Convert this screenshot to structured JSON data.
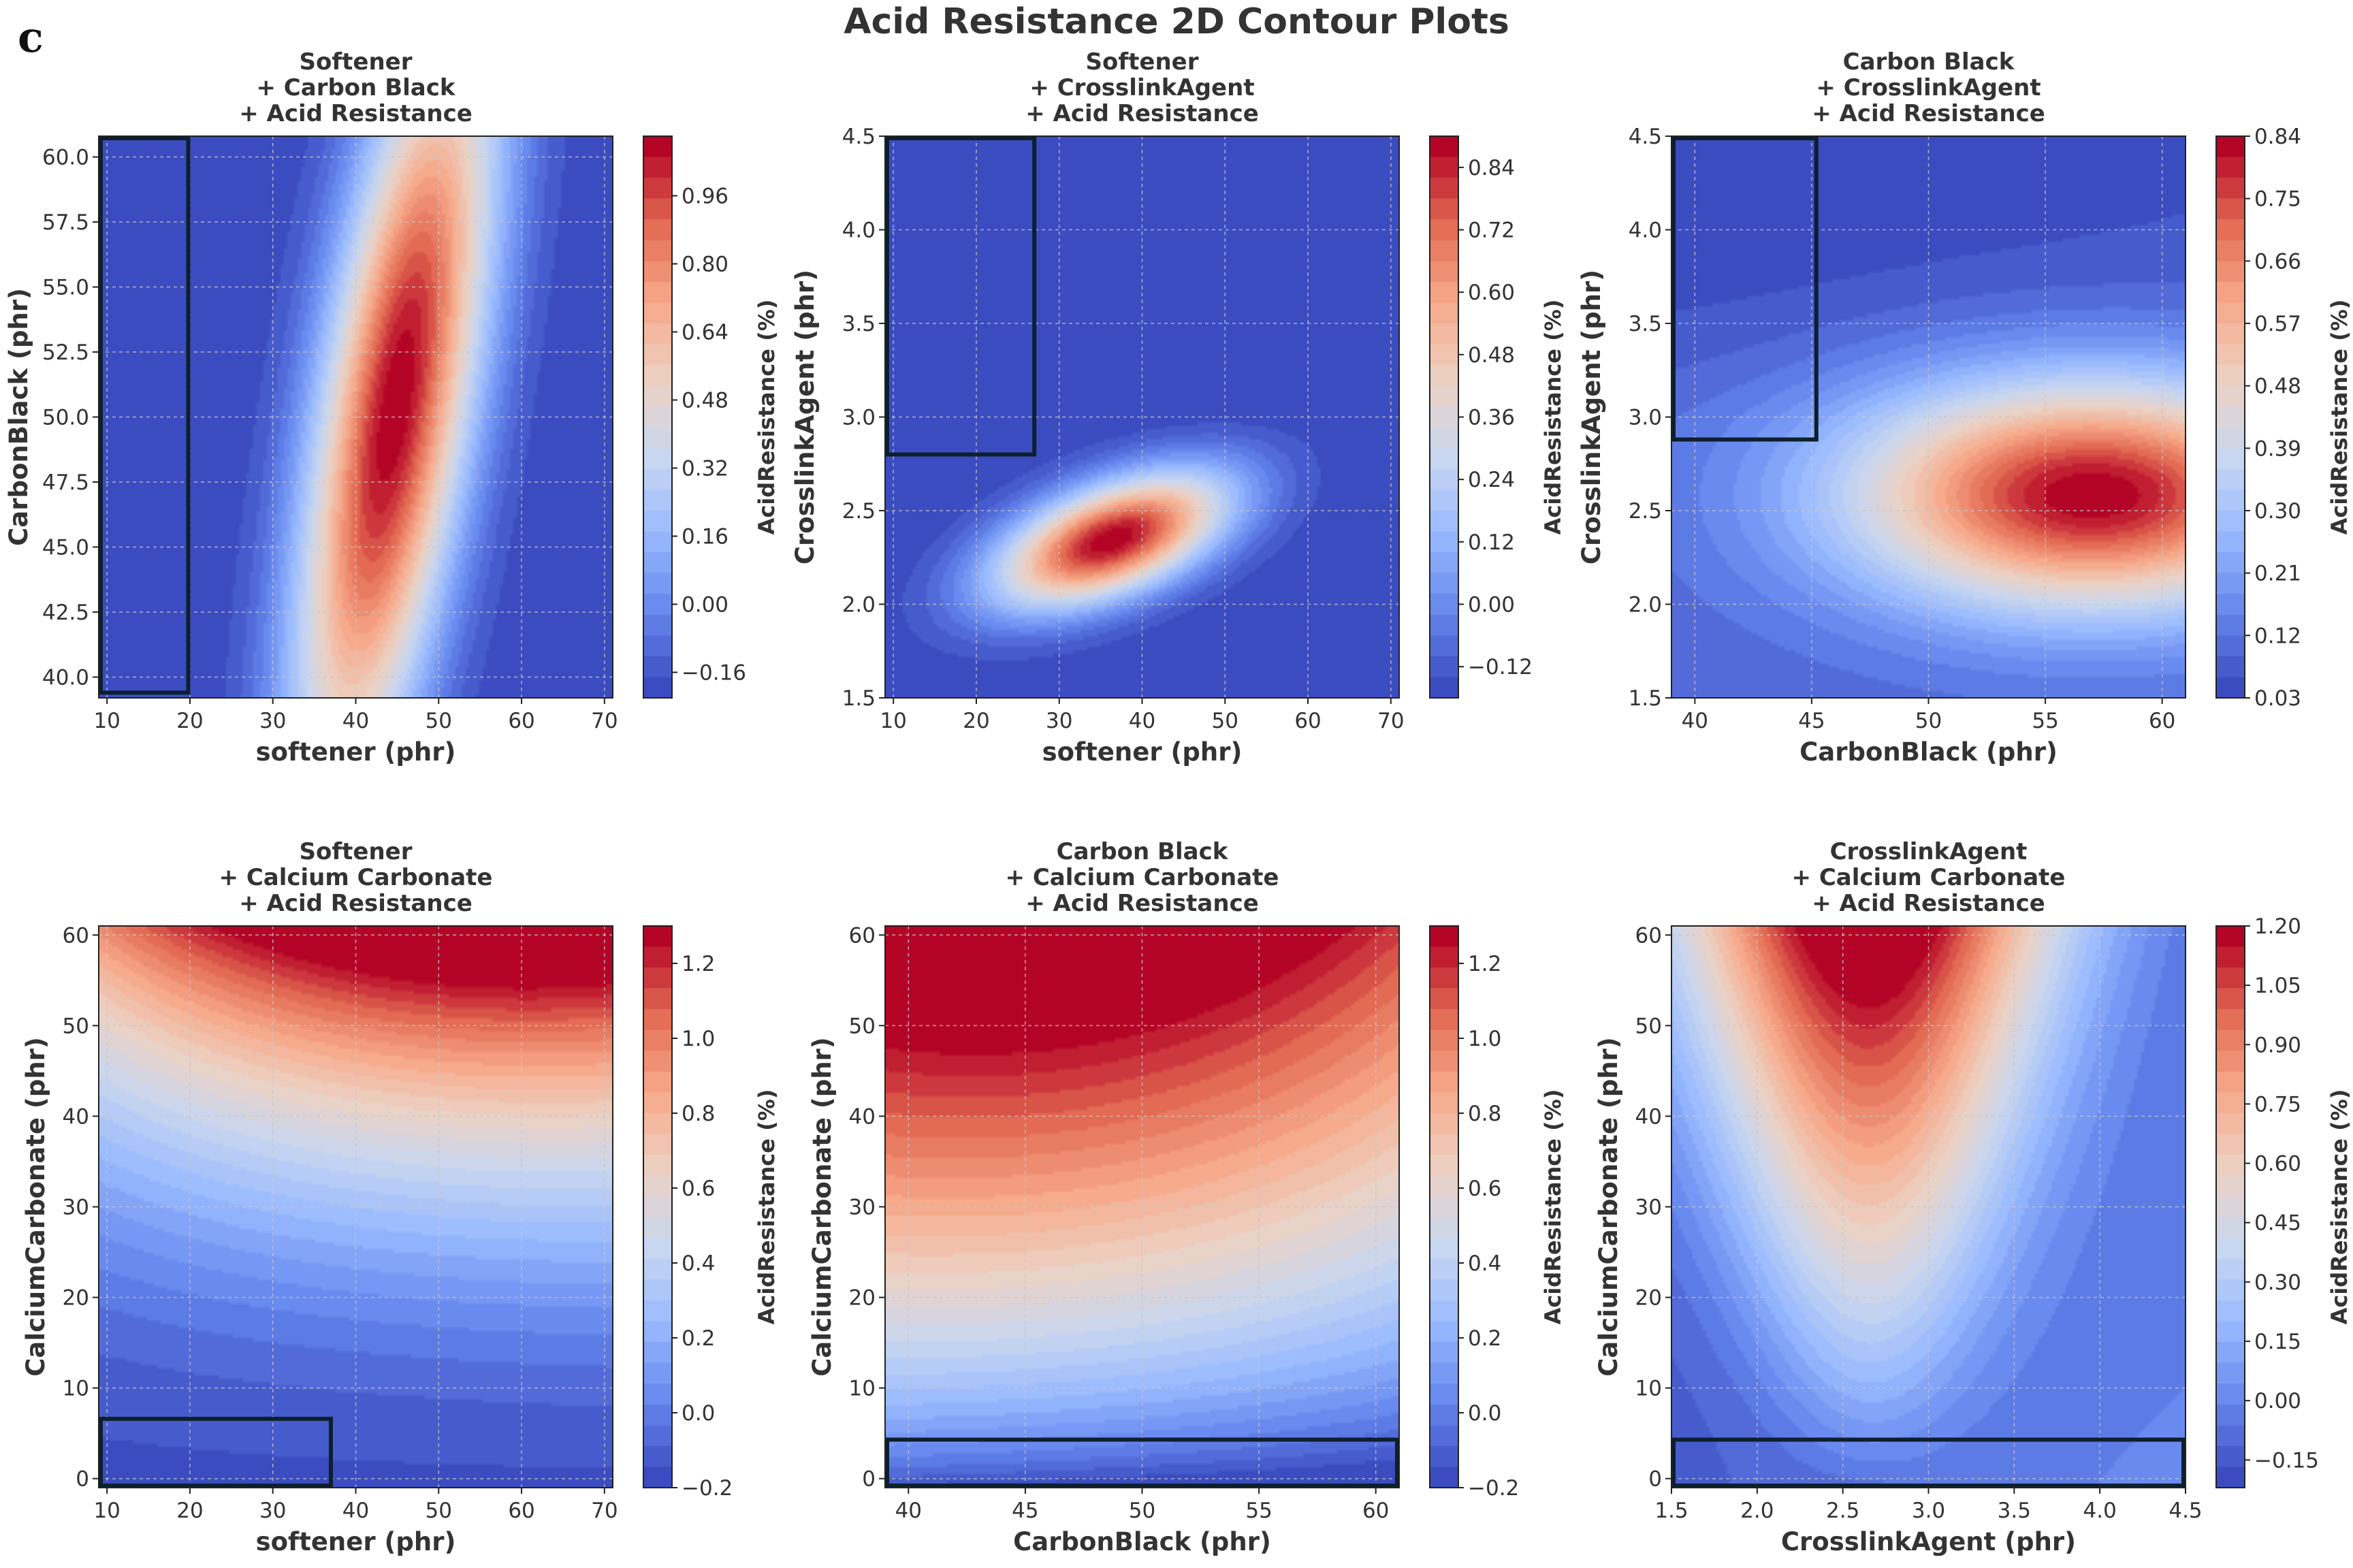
{
  "figure": {
    "panel_letter": "c",
    "title": "Acid Resistance 2D Contour Plots"
  },
  "colors": {
    "cmap": [
      "#3b4cc0",
      "#6788ee",
      "#9abbff",
      "#c9d7f0",
      "#edd1c2",
      "#f7a889",
      "#e26952",
      "#b40426"
    ],
    "box": "#0d1f2d",
    "grid": "#bbbbbb",
    "text": "#333333"
  },
  "chart_data": [
    {
      "type": "contour",
      "title": [
        "Softener",
        "+ Carbon Black",
        "+ Acid Resistance"
      ],
      "xlabel": "softener (phr)",
      "ylabel": "CarbonBlack (phr)",
      "cbar_label": "AcidResistance (%)",
      "xlim": [
        9,
        71
      ],
      "ylim": [
        39.2,
        60.8
      ],
      "xticks": [
        10,
        20,
        30,
        40,
        50,
        60,
        70
      ],
      "yticks": [
        40.0,
        42.5,
        45.0,
        47.5,
        50.0,
        52.5,
        55.0,
        57.5,
        60.0
      ],
      "ytick_decimals": 1,
      "cbar_range": [
        -0.22,
        1.1
      ],
      "cbar_ticks": [
        -0.16,
        0.0,
        0.16,
        0.32,
        0.48,
        0.64,
        0.8,
        0.96
      ],
      "cbar_decimals": 2,
      "peak": {
        "x": 48,
        "y": 50.5,
        "value": 1.08
      },
      "highlight_box": {
        "x": [
          9,
          19.8
        ],
        "y": [
          39.4,
          60.8
        ]
      }
    },
    {
      "type": "contour",
      "title": [
        "Softener",
        "+ CrosslinkAgent",
        "+ Acid Resistance"
      ],
      "xlabel": "softener (phr)",
      "ylabel": "CrosslinkAgent (phr)",
      "cbar_label": "AcidResistance (%)",
      "xlim": [
        9,
        71
      ],
      "ylim": [
        1.5,
        4.5
      ],
      "xticks": [
        10,
        20,
        30,
        40,
        50,
        60,
        70
      ],
      "yticks": [
        1.5,
        2.0,
        2.5,
        3.0,
        3.5,
        4.0,
        4.5
      ],
      "ytick_decimals": 1,
      "cbar_range": [
        -0.18,
        0.9
      ],
      "cbar_ticks": [
        -0.12,
        0.0,
        0.12,
        0.24,
        0.36,
        0.48,
        0.6,
        0.72,
        0.84
      ],
      "cbar_decimals": 2,
      "peak": {
        "x": 36,
        "y": 2.35,
        "value": 0.88
      },
      "highlight_box": {
        "x": [
          9,
          27
        ],
        "y": [
          2.8,
          4.5
        ]
      }
    },
    {
      "type": "contour",
      "title": [
        "Carbon Black",
        "+ CrosslinkAgent",
        "+ Acid Resistance"
      ],
      "xlabel": "CarbonBlack (phr)",
      "ylabel": "CrosslinkAgent (phr)",
      "cbar_label": "AcidResistance (%)",
      "xlim": [
        39,
        61
      ],
      "ylim": [
        1.5,
        4.5
      ],
      "xticks": [
        40,
        45,
        50,
        55,
        60
      ],
      "yticks": [
        1.5,
        2.0,
        2.5,
        3.0,
        3.5,
        4.0,
        4.5
      ],
      "ytick_decimals": 1,
      "cbar_range": [
        0.03,
        0.84
      ],
      "cbar_ticks": [
        0.03,
        0.12,
        0.21,
        0.3,
        0.39,
        0.48,
        0.57,
        0.66,
        0.75,
        0.84
      ],
      "cbar_decimals": 2,
      "peak": {
        "x": 57,
        "y": 2.55,
        "value": 0.82
      },
      "highlight_box": {
        "x": [
          39,
          45.2
        ],
        "y": [
          2.88,
          4.5
        ]
      }
    },
    {
      "type": "contour",
      "title": [
        "Softener",
        "+ Calcium Carbonate",
        "+ Acid Resistance"
      ],
      "xlabel": "softener (phr)",
      "ylabel": "CalciumCarbonate (phr)",
      "cbar_label": "AcidResistance (%)",
      "xlim": [
        9,
        71
      ],
      "ylim": [
        -1,
        61
      ],
      "xticks": [
        10,
        20,
        30,
        40,
        50,
        60,
        70
      ],
      "yticks": [
        0,
        10,
        20,
        30,
        40,
        50,
        60
      ],
      "ytick_decimals": 0,
      "cbar_range": [
        -0.2,
        1.3
      ],
      "cbar_ticks": [
        -0.2,
        0.0,
        0.2,
        0.4,
        0.6,
        0.8,
        1.0,
        1.2
      ],
      "cbar_decimals": 1,
      "peak": {
        "x": 55,
        "y": 61,
        "value": 1.28
      },
      "highlight_box": {
        "x": [
          9,
          37
        ],
        "y": [
          -1,
          6.6
        ]
      }
    },
    {
      "type": "contour",
      "title": [
        "Carbon Black",
        "+ Calcium Carbonate",
        "+ Acid Resistance"
      ],
      "xlabel": "CarbonBlack (phr)",
      "ylabel": "CalciumCarbonate (phr)",
      "cbar_label": "AcidResistance (%)",
      "xlim": [
        39,
        61
      ],
      "ylim": [
        -1,
        61
      ],
      "xticks": [
        40,
        45,
        50,
        55,
        60
      ],
      "yticks": [
        0,
        10,
        20,
        30,
        40,
        50,
        60
      ],
      "ytick_decimals": 0,
      "cbar_range": [
        -0.2,
        1.3
      ],
      "cbar_ticks": [
        -0.2,
        0.0,
        0.2,
        0.4,
        0.6,
        0.8,
        1.0,
        1.2
      ],
      "cbar_decimals": 1,
      "peak": {
        "x": 44,
        "y": 61,
        "value": 1.28
      },
      "highlight_box": {
        "x": [
          39,
          61
        ],
        "y": [
          -1,
          4.3
        ]
      }
    },
    {
      "type": "contour",
      "title": [
        "CrosslinkAgent",
        "+ Calcium Carbonate",
        "+ Acid Resistance"
      ],
      "xlabel": "CrosslinkAgent (phr)",
      "ylabel": "CalciumCarbonate (phr)",
      "cbar_label": "AcidResistance (%)",
      "xlim": [
        1.5,
        4.5
      ],
      "ylim": [
        -1,
        61
      ],
      "xticks": [
        1.5,
        2.0,
        2.5,
        3.0,
        3.5,
        4.0,
        4.5
      ],
      "xtick_decimals": 1,
      "yticks": [
        0,
        10,
        20,
        30,
        40,
        50,
        60
      ],
      "ytick_decimals": 0,
      "cbar_range": [
        -0.22,
        1.2
      ],
      "cbar_ticks": [
        -0.15,
        0.0,
        0.15,
        0.3,
        0.45,
        0.6,
        0.75,
        0.9,
        1.05,
        1.2
      ],
      "cbar_decimals": 2,
      "peak": {
        "x": 2.65,
        "y": 61,
        "value": 1.2
      },
      "highlight_box": {
        "x": [
          1.5,
          4.5
        ],
        "y": [
          -1,
          4.3
        ]
      }
    }
  ]
}
